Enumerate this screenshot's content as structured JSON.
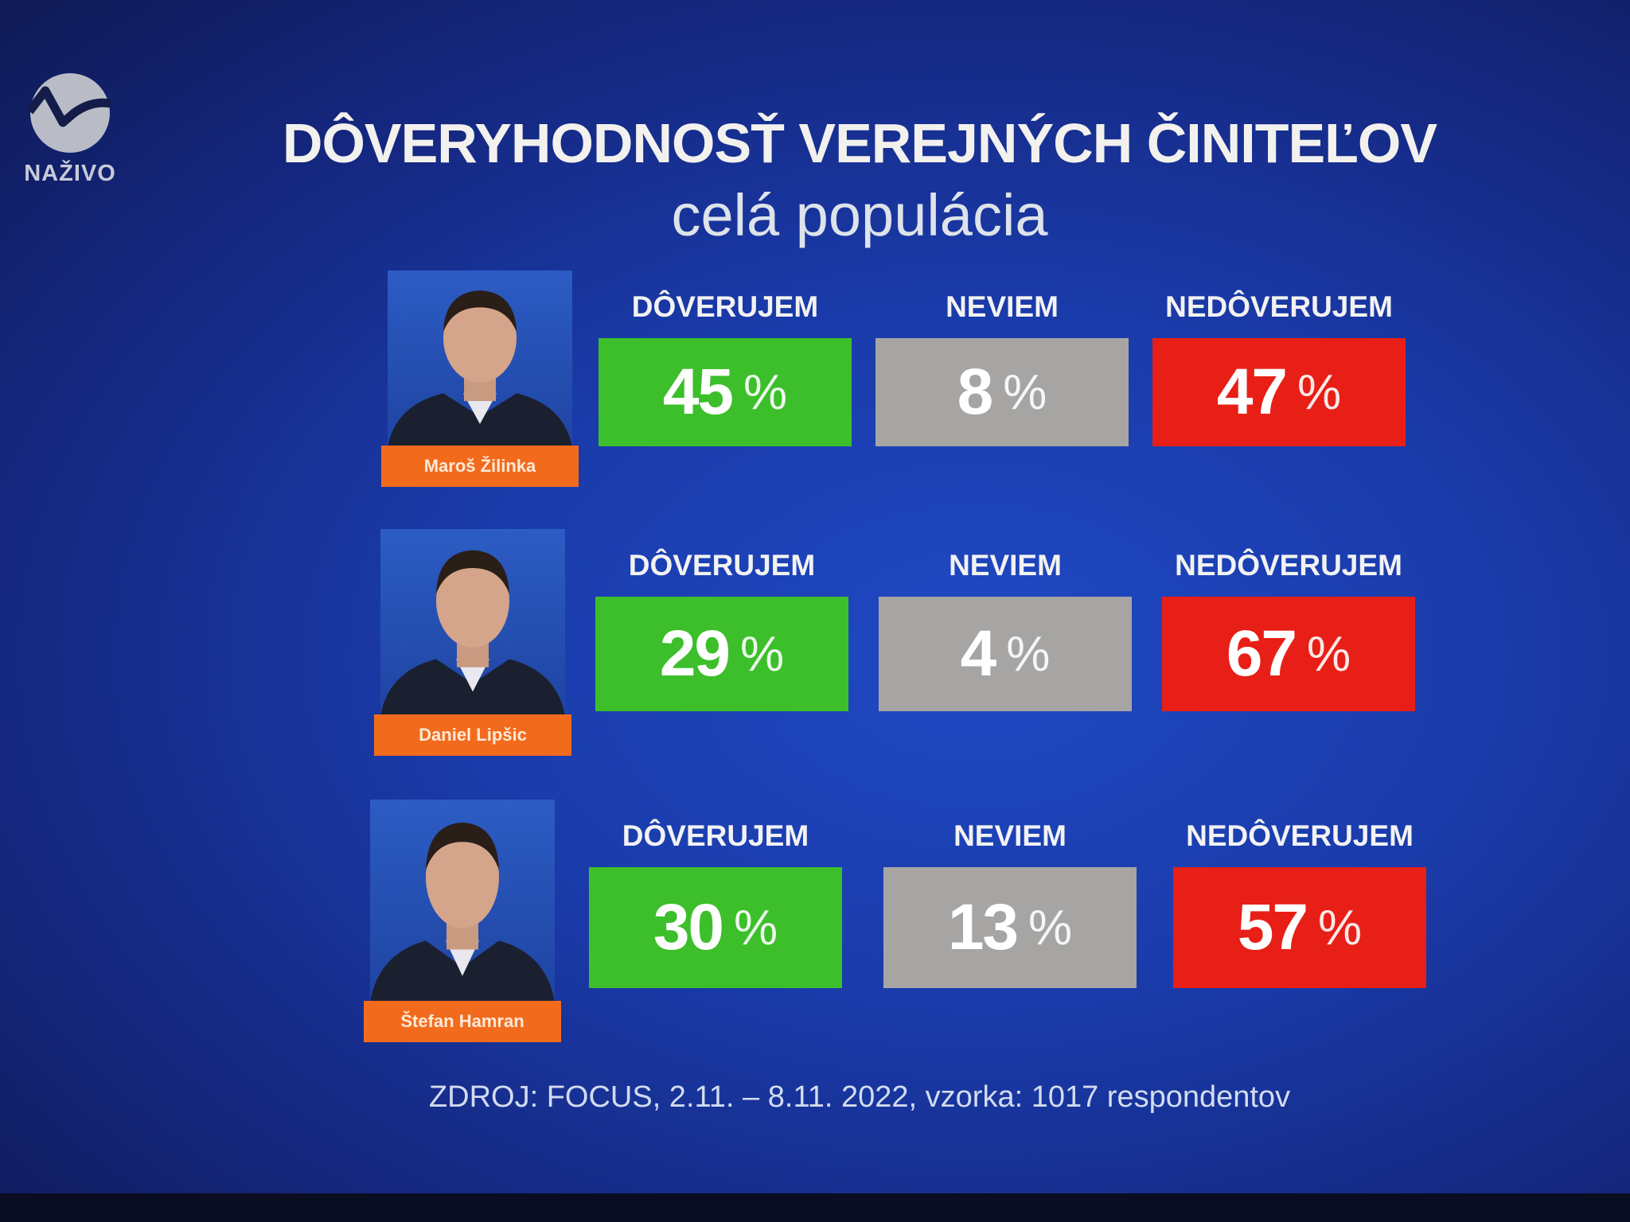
{
  "logo": {
    "text": "NAŽIVO",
    "icon": "ta3-logo"
  },
  "title": "DÔVERYHODNOSŤ VEREJNÝCH ČINITEĽOV",
  "subtitle": "celá populácia",
  "colors": {
    "trust": "#3cbf2a",
    "dontknow": "#a7a5a3",
    "distrust": "#e81f17",
    "name_tag": "#f26b1d"
  },
  "chart_data": {
    "type": "table",
    "title": "DÔVERYHODNOSŤ VEREJNÝCH ČINITEĽOV",
    "subtitle": "celá populácia",
    "columns": [
      "DÔVERUJEM",
      "NEVIEM",
      "NEDÔVERUJEM"
    ],
    "unit": "%",
    "rows": [
      {
        "name": "Maroš Žilinka",
        "values": [
          45,
          8,
          47
        ]
      },
      {
        "name": "Daniel Lipšic",
        "values": [
          29,
          4,
          67
        ]
      },
      {
        "name": "Štefan Hamran",
        "values": [
          30,
          13,
          57
        ]
      }
    ],
    "source": "ZDROJ: FOCUS, 2.11. – 8.11. 2022, vzorka: 1017 respondentov"
  }
}
